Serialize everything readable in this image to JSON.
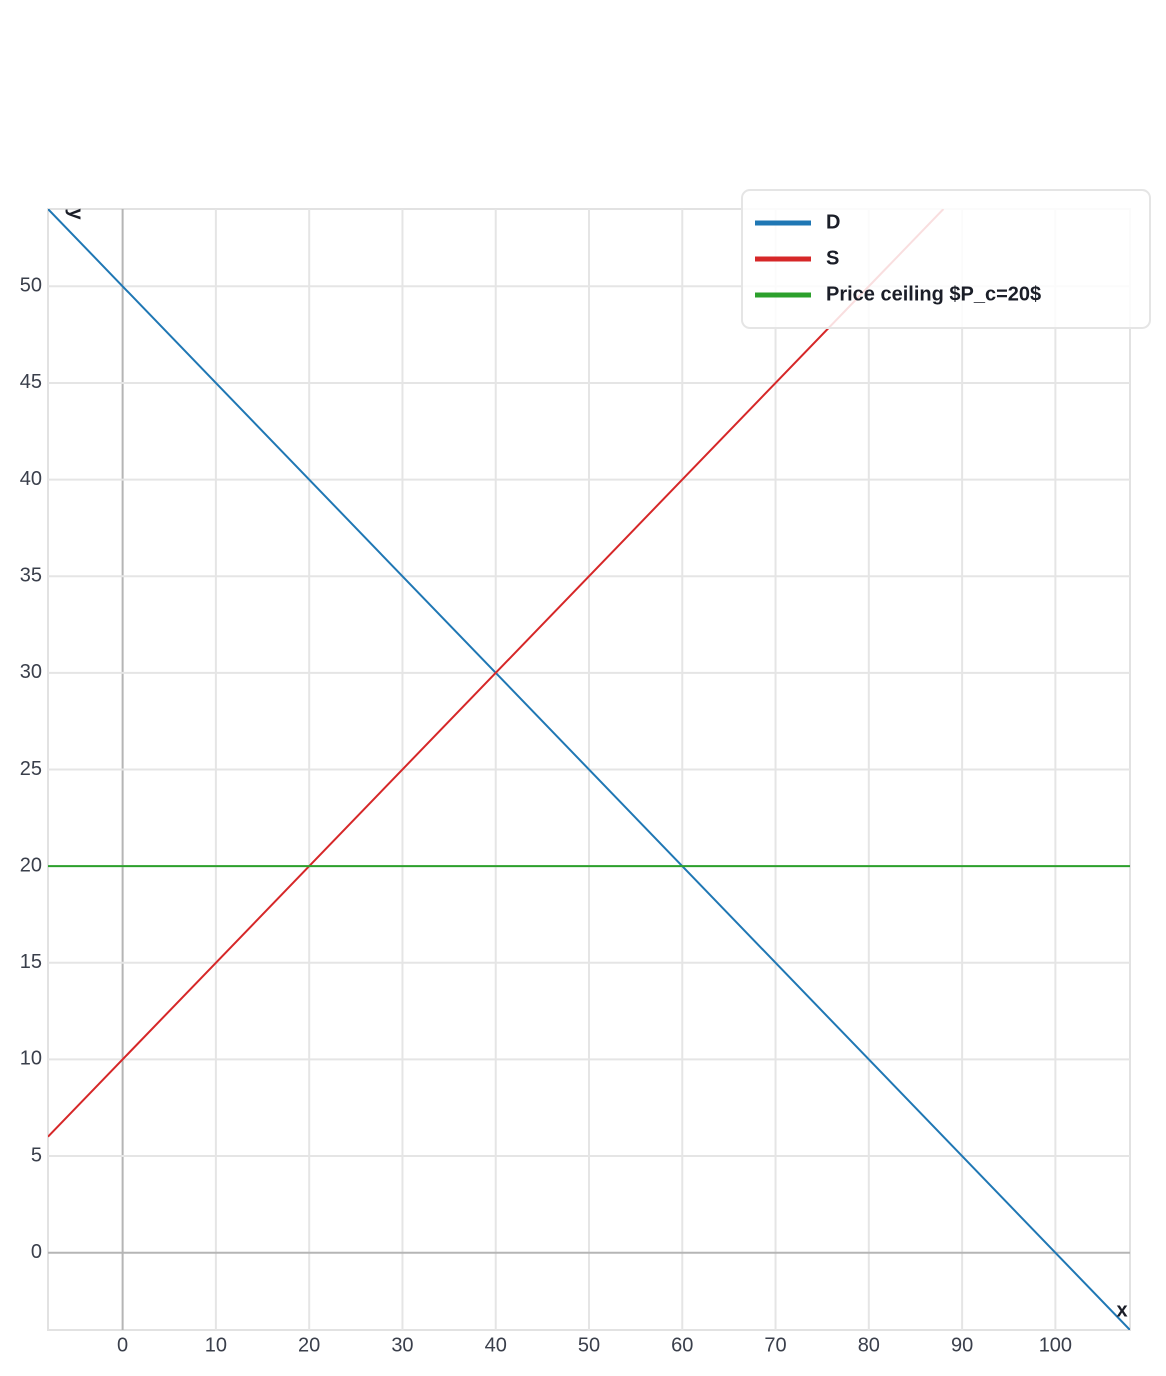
{
  "chart_data": {
    "type": "line",
    "xlabel": "x",
    "ylabel": "y",
    "series": [
      {
        "name": "D",
        "color": "#1f77b4",
        "x": [
          -8,
          108
        ],
        "values": [
          54,
          -4
        ]
      },
      {
        "name": "S",
        "color": "#d62728",
        "x": [
          -8,
          88
        ],
        "values": [
          6,
          54
        ]
      },
      {
        "name": "Price ceiling $P_c=20$",
        "color": "#2ca02c",
        "x": [
          -8,
          108
        ],
        "values": [
          20,
          20
        ]
      }
    ],
    "xlim": [
      -8,
      108
    ],
    "ylim": [
      -4,
      54
    ],
    "xticks": [
      0,
      10,
      20,
      30,
      40,
      50,
      60,
      70,
      80,
      90,
      100
    ],
    "yticks": [
      0,
      5,
      10,
      15,
      20,
      25,
      30,
      35,
      40,
      45,
      50
    ],
    "grid": true,
    "legend": "top-right"
  }
}
